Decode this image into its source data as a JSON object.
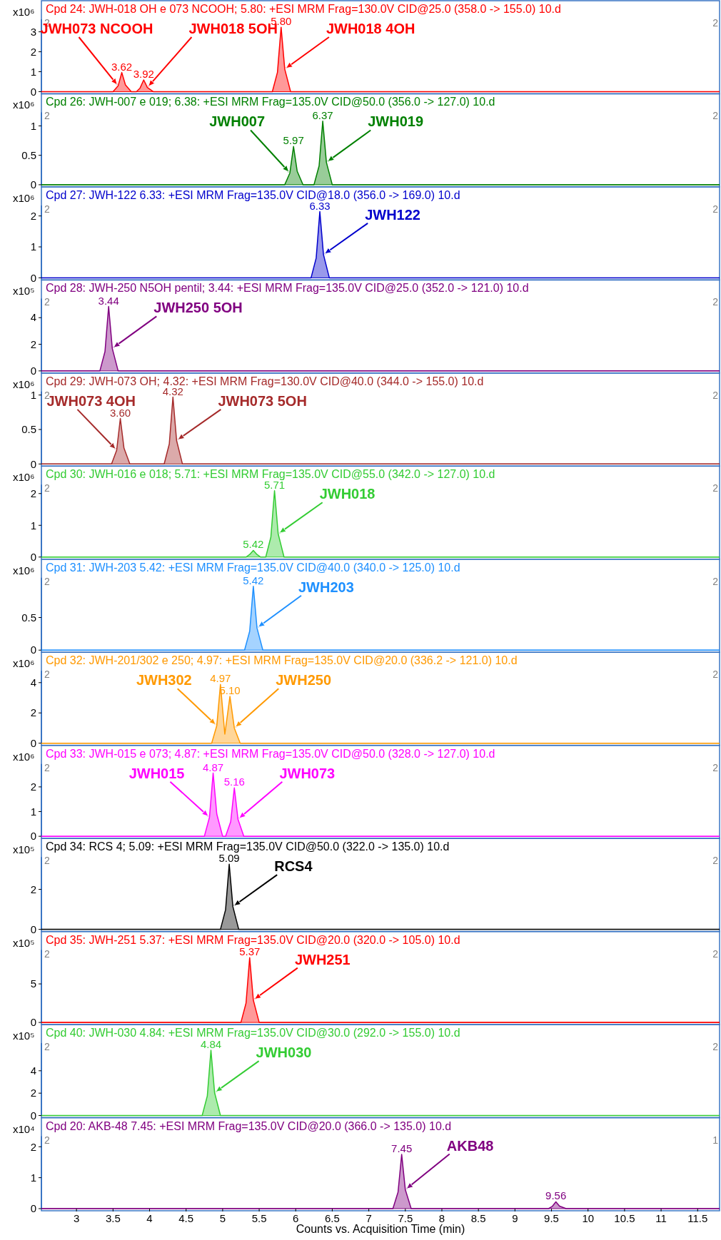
{
  "chart_data": [
    {
      "type": "area",
      "title": "Cpd 24: JWH-018 OH e 073 NCOOH; 5.80: +ESI MRM Frag=130.0V CID@25.0 (358.0 -> 155.0) 10.d",
      "ylabel": "x10⁶",
      "xlim": [
        2.52,
        11.8
      ],
      "ylim": [
        0,
        3.63
      ],
      "yticks": [
        0,
        1,
        2,
        3
      ],
      "tick_labels": "y",
      "series": [
        {
          "color": "#ff0000",
          "x": [
            2.52,
            3.5,
            3.57,
            3.62,
            3.67,
            3.75,
            3.82,
            3.87,
            3.92,
            3.97,
            4.05,
            5.68,
            5.75,
            5.8,
            5.85,
            5.93,
            11.8
          ],
          "values": [
            0,
            0,
            0.29,
            0.96,
            0.34,
            0,
            0,
            0.18,
            0.59,
            0.21,
            0,
            0,
            0.97,
            3.23,
            1.13,
            0,
            0
          ]
        }
      ],
      "annotations": [
        "2",
        "2",
        {
          "text": "3.62",
          "x": 3.62,
          "y": 0.96
        },
        {
          "text": "3.92",
          "x": 3.92,
          "y": 0.59
        },
        {
          "text": "5.80",
          "x": 5.8,
          "y": 3.23
        },
        {
          "text": "JWH073 NCOOH",
          "x": 3.57,
          "y": 0.29
        },
        {
          "text": "JWH018 5OH",
          "x": 3.97,
          "y": 0.21
        },
        {
          "text": "JWH018 4OH",
          "x": 5.85,
          "y": 1.13
        }
      ]
    },
    {
      "type": "area",
      "title": "Cpd 26: JWH-007 e 019; 6.38: +ESI MRM Frag=135.0V CID@50.0 (356.0 -> 127.0) 10.d",
      "ylabel": "x10⁶",
      "xlim": [
        2.52,
        11.8
      ],
      "ylim": [
        0,
        1.23
      ],
      "yticks": [
        0,
        0.5,
        1
      ],
      "tick_labels": "y",
      "series": [
        {
          "color": "#008000",
          "x": [
            2.52,
            5.85,
            5.92,
            5.97,
            6.02,
            6.1,
            6.25,
            6.32,
            6.37,
            6.42,
            6.5,
            11.8
          ],
          "values": [
            0,
            0,
            0.2,
            0.65,
            0.23,
            0,
            0,
            0.32,
            1.08,
            0.38,
            0,
            0
          ]
        }
      ],
      "annotations": [
        "2",
        "2",
        {
          "text": "5.97",
          "x": 5.97,
          "y": 0.65
        },
        {
          "text": "6.37",
          "x": 6.37,
          "y": 1.08
        },
        {
          "text": "JWH007",
          "x": 5.92,
          "y": 0.2
        },
        {
          "text": "JWH019",
          "x": 6.42,
          "y": 0.38
        }
      ]
    },
    {
      "type": "area",
      "title": "Cpd 27: JWH-122 6.33: +ESI MRM Frag=135.0V CID@18.0 (356.0 -> 169.0) 10.d",
      "ylabel": "x10⁶",
      "xlim": [
        2.52,
        11.8
      ],
      "ylim": [
        0,
        2.34
      ],
      "yticks": [
        0,
        1,
        2
      ],
      "tick_labels": "y",
      "series": [
        {
          "color": "#0000cc",
          "x": [
            2.52,
            6.21,
            6.28,
            6.33,
            6.38,
            6.46,
            11.8
          ],
          "values": [
            0,
            0,
            0.64,
            2.14,
            0.75,
            0,
            0
          ]
        }
      ],
      "annotations": [
        "2",
        "2",
        {
          "text": "6.33",
          "x": 6.33,
          "y": 2.14
        },
        {
          "text": "JWH122",
          "x": 6.38,
          "y": 0.75
        }
      ]
    },
    {
      "type": "area",
      "title": "Cpd 28: JWH-250 N5OH pentil; 3.44: +ESI MRM Frag=135.0V CID@25.0 (352.0 -> 121.0) 10.d",
      "ylabel": "x10⁵",
      "xlim": [
        2.52,
        11.8
      ],
      "ylim": [
        0,
        5.44
      ],
      "yticks": [
        0,
        2,
        4
      ],
      "tick_labels": "y",
      "series": [
        {
          "color": "#800080",
          "x": [
            2.52,
            3.32,
            3.39,
            3.44,
            3.49,
            3.57,
            11.8
          ],
          "values": [
            0,
            0,
            1.45,
            4.84,
            1.69,
            0,
            0
          ]
        }
      ],
      "annotations": [
        "2",
        "2",
        {
          "text": "3.44",
          "x": 3.44,
          "y": 4.84
        },
        {
          "text": "JWH250 5OH",
          "x": 3.49,
          "y": 1.69
        }
      ]
    },
    {
      "type": "area",
      "title": "Cpd 29: JWH-073 OH; 4.32: +ESI MRM Frag=130.0V CID@40.0 (344.0 -> 155.0) 10.d",
      "ylabel": "x10⁶",
      "xlim": [
        2.52,
        11.8
      ],
      "ylim": [
        0,
        1.05
      ],
      "yticks": [
        0,
        0.5,
        1
      ],
      "tick_labels": "y",
      "series": [
        {
          "color": "#a52a2a",
          "x": [
            2.52,
            3.48,
            3.55,
            3.6,
            3.65,
            3.73,
            4.2,
            4.27,
            4.32,
            4.37,
            4.45,
            11.8
          ],
          "values": [
            0,
            0,
            0.2,
            0.66,
            0.23,
            0,
            0,
            0.29,
            0.97,
            0.34,
            0,
            0
          ]
        }
      ],
      "annotations": [
        "2",
        "2",
        {
          "text": "3.60",
          "x": 3.6,
          "y": 0.66
        },
        {
          "text": "4.32",
          "x": 4.32,
          "y": 0.97
        },
        {
          "text": "JWH073 4OH",
          "x": 3.55,
          "y": 0.2
        },
        {
          "text": "JWH073 5OH",
          "x": 4.37,
          "y": 0.34
        }
      ]
    },
    {
      "type": "area",
      "title": "Cpd 30: JWH-016 e 018; 5.71: +ESI MRM Frag=135.0V CID@55.0 (342.0 -> 127.0) 10.d",
      "ylabel": "x10⁶",
      "xlim": [
        2.52,
        11.8
      ],
      "ylim": [
        0,
        2.28
      ],
      "yticks": [
        0,
        1,
        2
      ],
      "tick_labels": "y",
      "series": [
        {
          "color": "#33cc33",
          "x": [
            2.52,
            5.32,
            5.37,
            5.42,
            5.47,
            5.52,
            5.59,
            5.66,
            5.71,
            5.76,
            5.84,
            11.8
          ],
          "values": [
            0,
            0,
            0.08,
            0.21,
            0.08,
            0,
            0,
            0.63,
            2.09,
            0.73,
            0,
            0
          ]
        }
      ],
      "annotations": [
        "2",
        "2",
        {
          "text": "5.42",
          "x": 5.42,
          "y": 0.21
        },
        {
          "text": "5.71",
          "x": 5.71,
          "y": 2.09
        },
        {
          "text": "JWH018",
          "x": 5.76,
          "y": 0.73
        }
      ]
    },
    {
      "type": "area",
      "title": "Cpd 31: JWH-203 5.42: +ESI MRM Frag=135.0V CID@40.0 (340.0 -> 125.0) 10.d",
      "ylabel": "x10⁶",
      "xlim": [
        2.52,
        11.8
      ],
      "ylim": [
        0,
        1.11
      ],
      "yticks": [
        0,
        0.5
      ],
      "tick_labels": "y",
      "series": [
        {
          "color": "#1e90ff",
          "x": [
            2.52,
            5.3,
            5.37,
            5.42,
            5.47,
            5.55,
            11.8
          ],
          "values": [
            0,
            0,
            0.29,
            0.98,
            0.34,
            0,
            0
          ]
        }
      ],
      "annotations": [
        "2",
        "2",
        {
          "text": "5.42",
          "x": 5.42,
          "y": 0.98
        },
        {
          "text": "JWH203",
          "x": 5.47,
          "y": 0.34
        }
      ]
    },
    {
      "type": "area",
      "title": "Cpd 32: JWH-201/302 e 250; 4.97: +ESI MRM Frag=135.0V CID@20.0 (336.2 -> 121.0) 10.d",
      "ylabel": "x10⁶",
      "xlim": [
        2.52,
        11.8
      ],
      "ylim": [
        0,
        4.78
      ],
      "yticks": [
        0,
        2,
        4
      ],
      "tick_labels": "y",
      "series": [
        {
          "color": "#ff9900",
          "x": [
            2.52,
            4.85,
            4.92,
            4.97,
            5.03,
            5.1,
            5.16,
            5.24,
            11.8
          ],
          "values": [
            0,
            0,
            1.16,
            3.88,
            0.6,
            3.09,
            1.0,
            0,
            0
          ]
        }
      ],
      "annotations": [
        "2",
        "2",
        {
          "text": "4.97",
          "x": 4.97,
          "y": 3.88
        },
        {
          "text": "5.10",
          "x": 5.1,
          "y": 3.09
        },
        {
          "text": "JWH302",
          "x": 4.92,
          "y": 1.16
        },
        {
          "text": "JWH250",
          "x": 5.16,
          "y": 1.0
        }
      ]
    },
    {
      "type": "area",
      "title": "Cpd 33: JWH-015 e 073; 4.87: +ESI MRM Frag=135.0V CID@50.0 (328.0 -> 127.0) 10.d",
      "ylabel": "x10⁶",
      "xlim": [
        2.52,
        11.8
      ],
      "ylim": [
        0,
        2.93
      ],
      "yticks": [
        0,
        1,
        2
      ],
      "tick_labels": "y",
      "series": [
        {
          "color": "#ff00ff",
          "x": [
            2.52,
            4.75,
            4.82,
            4.87,
            4.92,
            5.0,
            5.04,
            5.11,
            5.16,
            5.21,
            5.29,
            11.8
          ],
          "values": [
            0,
            0,
            0.77,
            2.56,
            0.9,
            0,
            0,
            0.59,
            1.96,
            0.69,
            0,
            0
          ]
        }
      ],
      "annotations": [
        "2",
        "2",
        {
          "text": "4.87",
          "x": 4.87,
          "y": 2.56
        },
        {
          "text": "5.16",
          "x": 5.16,
          "y": 1.96
        },
        {
          "text": "JWH015",
          "x": 4.82,
          "y": 0.77
        },
        {
          "text": "JWH073",
          "x": 5.21,
          "y": 0.69
        }
      ]
    },
    {
      "type": "area",
      "title": "Cpd 34: RCS 4; 5.09: +ESI MRM Frag=135.0V CID@50.0 (322.0 -> 135.0) 10.d",
      "ylabel": "x10⁵",
      "xlim": [
        2.52,
        11.8
      ],
      "ylim": [
        0,
        3.62
      ],
      "yticks": [
        0,
        2
      ],
      "tick_labels": "y",
      "series": [
        {
          "color": "#000000",
          "x": [
            2.52,
            4.97,
            5.04,
            5.09,
            5.14,
            5.22,
            11.8
          ],
          "values": [
            0,
            0,
            0.98,
            3.26,
            1.14,
            0,
            0
          ]
        }
      ],
      "annotations": [
        "2",
        "2",
        {
          "text": "5.09",
          "x": 5.09,
          "y": 3.26
        },
        {
          "text": "RCS4",
          "x": 5.14,
          "y": 1.14
        }
      ]
    },
    {
      "type": "area",
      "title": "Cpd 35: JWH-251 5.37: +ESI MRM Frag=135.0V CID@20.0 (320.0 -> 105.0) 10.d",
      "ylabel": "x10⁵",
      "xlim": [
        2.52,
        11.8
      ],
      "ylim": [
        0,
        9.39
      ],
      "yticks": [
        0,
        5
      ],
      "tick_labels": "y",
      "series": [
        {
          "color": "#ff0000",
          "x": [
            2.52,
            5.25,
            5.32,
            5.37,
            5.42,
            5.5,
            11.8
          ],
          "values": [
            0,
            0,
            2.5,
            8.4,
            2.9,
            0,
            0
          ]
        }
      ],
      "annotations": [
        "2",
        "2",
        {
          "text": "5.37",
          "x": 5.37,
          "y": 8.4
        },
        {
          "text": "JWH251",
          "x": 5.42,
          "y": 2.9
        }
      ]
    },
    {
      "type": "area",
      "title": "Cpd 40: JWH-030 4.84: +ESI MRM Frag=135.0V CID@30.0 (292.0 -> 155.0) 10.d",
      "ylabel": "x10⁵",
      "xlim": [
        2.52,
        11.8
      ],
      "ylim": [
        0,
        6.47
      ],
      "yticks": [
        0,
        2,
        4
      ],
      "tick_labels": "y",
      "series": [
        {
          "color": "#33cc33",
          "x": [
            2.52,
            4.72,
            4.79,
            4.84,
            4.89,
            4.97,
            11.8
          ],
          "values": [
            0,
            0,
            1.75,
            5.83,
            2.04,
            0,
            0
          ]
        }
      ],
      "annotations": [
        "2",
        "2",
        {
          "text": "4.84",
          "x": 4.84,
          "y": 5.83
        },
        {
          "text": "JWH030",
          "x": 4.89,
          "y": 2.04
        }
      ]
    },
    {
      "type": "area",
      "title": "Cpd 20: AKB-48 7.45: +ESI MRM Frag=135.0V CID@20.0 (366.0 -> 135.0) 10.d",
      "ylabel": "x10⁴",
      "xlabel": "Counts vs. Acquisition Time (min)",
      "xlim": [
        2.52,
        11.8
      ],
      "ylim": [
        0,
        2.34
      ],
      "yticks": [
        0,
        1,
        2
      ],
      "xticks": [
        3,
        3.5,
        4,
        4.5,
        5,
        5.5,
        6,
        6.5,
        7,
        7.5,
        8,
        8.5,
        9,
        9.5,
        10,
        10.5,
        11,
        11.5
      ],
      "series": [
        {
          "color": "#800080",
          "x": [
            2.52,
            7.33,
            7.4,
            7.45,
            7.5,
            7.58,
            9.46,
            9.51,
            9.56,
            9.61,
            9.7,
            11.8
          ],
          "values": [
            0,
            0,
            0.53,
            1.75,
            0.61,
            0,
            0,
            0.07,
            0.22,
            0.08,
            0,
            0
          ]
        }
      ],
      "annotations": [
        "2",
        "1",
        {
          "text": "7.45",
          "x": 7.45,
          "y": 1.75
        },
        {
          "text": "9.56",
          "x": 9.56,
          "y": 0.22
        },
        {
          "text": "AKB48",
          "x": 7.5,
          "y": 0.61
        }
      ]
    }
  ]
}
